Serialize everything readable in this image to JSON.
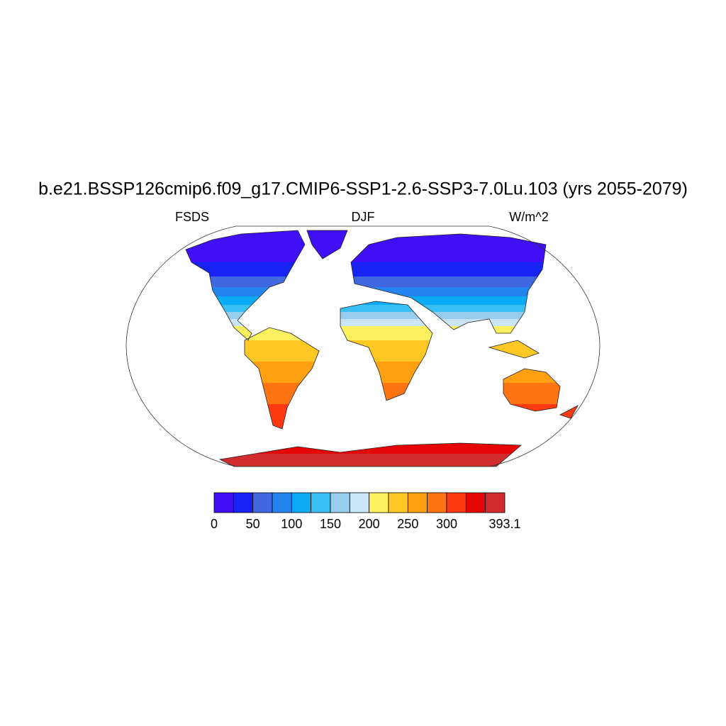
{
  "title": "b.e21.BSSP126cmip6.f09_g17.CMIP6-SSP1-2.6-SSP3-7.0Lu.103 (yrs 2055-2079)",
  "left_label": "FSDS",
  "center_label": "DJF",
  "right_label": "W/m^2",
  "colorbar": {
    "boundaries": [
      0,
      25,
      50,
      75,
      100,
      125,
      150,
      175,
      200,
      225,
      250,
      275,
      300,
      325,
      350,
      393.1
    ],
    "colors": [
      "#3f10f5",
      "#1623f2",
      "#4068e0",
      "#2384f0",
      "#0aaaf5",
      "#38c0f2",
      "#96cdec",
      "#c8e4f5",
      "#fff060",
      "#ffc825",
      "#ffa010",
      "#ff7412",
      "#ff3a10",
      "#e60505",
      "#d02c2c"
    ],
    "ticks": [
      0,
      50,
      100,
      150,
      200,
      250,
      300,
      393.1
    ]
  }
}
